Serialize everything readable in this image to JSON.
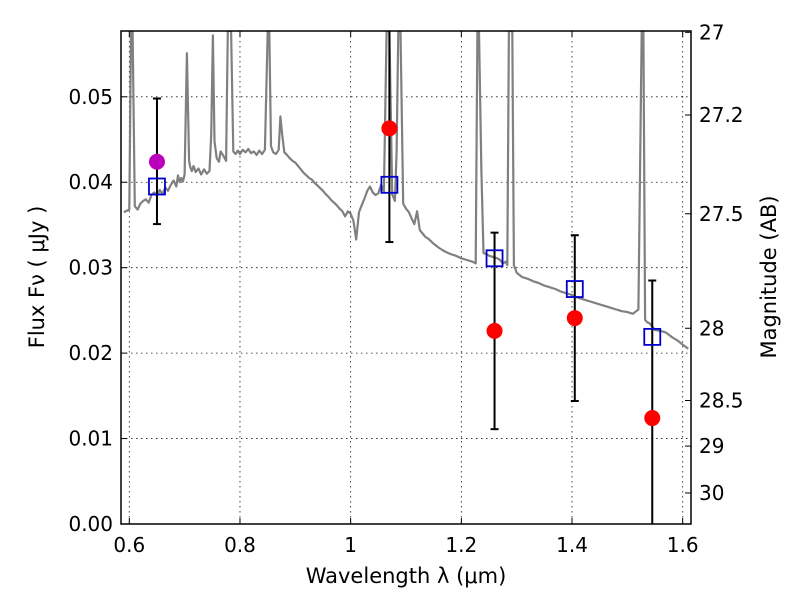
{
  "chart_data": {
    "type": "scatter",
    "xlabel": "Wavelength  λ (μm)",
    "ylabel": "Flux  Fν  ( μJy )",
    "ylabel_right": "Magnitude (AB)",
    "xlim": [
      0.585,
      1.615
    ],
    "ylim": [
      0.0,
      0.0577
    ],
    "x_ticks": [
      0.6,
      0.8,
      1.0,
      1.2,
      1.4,
      1.6
    ],
    "x_tick_labels": [
      "0.6",
      "0.8",
      "1",
      "1.2",
      "1.4",
      "1.6"
    ],
    "y_ticks": [
      0.0,
      0.01,
      0.02,
      0.03,
      0.04,
      0.05
    ],
    "y_tick_labels": [
      "0.00",
      "0.01",
      "0.02",
      "0.03",
      "0.04",
      "0.05"
    ],
    "mag_ticks": [
      27,
      27.2,
      27.5,
      28,
      28.5,
      29,
      30
    ],
    "mag_tick_labels": [
      "27",
      "27.2",
      "27.5",
      "28",
      "28.5",
      "29",
      "30"
    ],
    "grid": true,
    "series": [
      {
        "kind": "model_spectrum",
        "color": "#808080",
        "x": [
          0.59,
          0.6,
          0.603,
          0.606,
          0.61,
          0.615,
          0.62,
          0.625,
          0.63,
          0.635,
          0.64,
          0.645,
          0.65,
          0.655,
          0.66,
          0.665,
          0.67,
          0.675,
          0.68,
          0.685,
          0.688,
          0.691,
          0.694,
          0.697,
          0.7,
          0.704,
          0.708,
          0.71,
          0.713,
          0.716,
          0.72,
          0.725,
          0.73,
          0.735,
          0.74,
          0.745,
          0.748,
          0.751,
          0.754,
          0.758,
          0.762,
          0.765,
          0.77,
          0.775,
          0.778,
          0.781,
          0.784,
          0.788,
          0.792,
          0.796,
          0.8,
          0.805,
          0.81,
          0.815,
          0.82,
          0.825,
          0.83,
          0.835,
          0.84,
          0.845,
          0.85,
          0.853,
          0.856,
          0.86,
          0.865,
          0.87,
          0.873,
          0.876,
          0.88,
          0.885,
          0.89,
          0.895,
          0.9,
          0.905,
          0.91,
          0.915,
          0.92,
          0.925,
          0.93,
          0.935,
          0.94,
          0.945,
          0.95,
          0.955,
          0.96,
          0.965,
          0.97,
          0.975,
          0.98,
          0.985,
          0.99,
          0.995,
          1.0,
          1.005,
          1.01,
          1.015,
          1.02,
          1.025,
          1.03,
          1.035,
          1.04,
          1.045,
          1.05,
          1.055,
          1.06,
          1.065,
          1.07,
          1.075,
          1.08,
          1.083,
          1.086,
          1.09,
          1.095,
          1.1,
          1.105,
          1.11,
          1.115,
          1.12,
          1.125,
          1.13,
          1.135,
          1.14,
          1.145,
          1.15,
          1.16,
          1.17,
          1.18,
          1.19,
          1.2,
          1.21,
          1.22,
          1.226,
          1.229,
          1.232,
          1.236,
          1.24,
          1.245,
          1.25,
          1.255,
          1.26,
          1.265,
          1.27,
          1.275,
          1.28,
          1.283,
          1.286,
          1.289,
          1.292,
          1.295,
          1.3,
          1.31,
          1.32,
          1.33,
          1.34,
          1.35,
          1.36,
          1.37,
          1.38,
          1.39,
          1.4,
          1.41,
          1.42,
          1.43,
          1.44,
          1.45,
          1.46,
          1.47,
          1.48,
          1.49,
          1.5,
          1.51,
          1.52,
          1.526,
          1.529,
          1.532,
          1.536,
          1.54,
          1.55,
          1.56,
          1.57,
          1.58,
          1.59,
          1.6,
          1.61
        ],
        "y": [
          0.0365,
          0.0368,
          0.0577,
          0.0577,
          0.0372,
          0.0368,
          0.0375,
          0.0378,
          0.038,
          0.0376,
          0.0385,
          0.0388,
          0.0384,
          0.0391,
          0.0386,
          0.0394,
          0.039,
          0.0397,
          0.0402,
          0.0395,
          0.0408,
          0.04,
          0.0405,
          0.0401,
          0.0409,
          0.0551,
          0.0425,
          0.0418,
          0.0413,
          0.0419,
          0.0412,
          0.0416,
          0.0409,
          0.0415,
          0.041,
          0.0413,
          0.0455,
          0.0572,
          0.0448,
          0.0428,
          0.0424,
          0.0436,
          0.0431,
          0.0425,
          0.0577,
          0.0577,
          0.0577,
          0.0436,
          0.0433,
          0.0437,
          0.0433,
          0.0438,
          0.0435,
          0.0439,
          0.0434,
          0.0436,
          0.0432,
          0.0437,
          0.0433,
          0.0438,
          0.0577,
          0.0577,
          0.0442,
          0.0435,
          0.0433,
          0.0438,
          0.0477,
          0.0458,
          0.0435,
          0.0432,
          0.0428,
          0.0425,
          0.0423,
          0.0419,
          0.0415,
          0.0411,
          0.0408,
          0.0405,
          0.0403,
          0.0399,
          0.0396,
          0.0393,
          0.039,
          0.0386,
          0.0383,
          0.0379,
          0.0376,
          0.0373,
          0.0369,
          0.0366,
          0.036,
          0.0366,
          0.0363,
          0.0355,
          0.0333,
          0.0365,
          0.0373,
          0.0381,
          0.039,
          0.0395,
          0.0388,
          0.0385,
          0.0387,
          0.0397,
          0.0389,
          0.0577,
          0.0577,
          0.0386,
          0.0378,
          0.0435,
          0.0577,
          0.0577,
          0.0375,
          0.0369,
          0.0365,
          0.0358,
          0.0351,
          0.0366,
          0.0344,
          0.034,
          0.0336,
          0.0334,
          0.0331,
          0.0328,
          0.0323,
          0.0319,
          0.0316,
          0.0314,
          0.0311,
          0.0309,
          0.0307,
          0.0305,
          0.0577,
          0.0577,
          0.0418,
          0.0317,
          0.0316,
          0.0314,
          0.0313,
          0.0312,
          0.0311,
          0.0309,
          0.0305,
          0.0307,
          0.0303,
          0.0577,
          0.0577,
          0.0577,
          0.0303,
          0.0294,
          0.0289,
          0.0287,
          0.0284,
          0.0282,
          0.0279,
          0.0277,
          0.0275,
          0.0272,
          0.027,
          0.0268,
          0.0265,
          0.0263,
          0.0261,
          0.0259,
          0.0257,
          0.0255,
          0.0253,
          0.0251,
          0.0249,
          0.0248,
          0.0246,
          0.0251,
          0.0577,
          0.0577,
          0.0239,
          0.0236,
          0.0235,
          0.0227,
          0.0226,
          0.0224,
          0.0219,
          0.0215,
          0.021,
          0.0205
        ]
      },
      {
        "kind": "model_bandpass",
        "color": "#0000cc",
        "x": [
          0.65,
          1.07,
          1.26,
          1.405,
          1.545
        ],
        "y": [
          0.0395,
          0.0397,
          0.0311,
          0.0275,
          0.0219
        ]
      },
      {
        "kind": "observed_detection",
        "color": "#ff0000",
        "x": [
          1.07,
          1.26,
          1.405,
          1.545
        ],
        "y": [
          0.0463,
          0.0226,
          0.0241,
          0.0124
        ],
        "yerr_low": [
          0.0133,
          0.0115,
          0.0097,
          0.0124
        ],
        "yerr_high": [
          0.0115,
          0.0115,
          0.0097,
          0.0161
        ]
      },
      {
        "kind": "observed_other",
        "color": "#bb00bb",
        "x": [
          0.65
        ],
        "y": [
          0.0424
        ],
        "yerr_low": [
          0.0073
        ],
        "yerr_high": [
          0.0074
        ]
      }
    ]
  }
}
